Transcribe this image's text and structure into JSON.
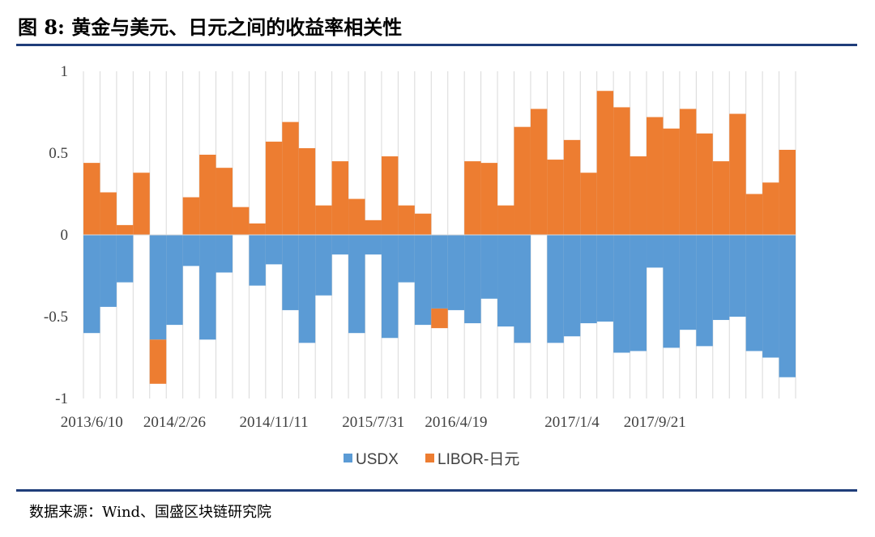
{
  "title": "图 8:  黄金与美元、日元之间的收益率相关性",
  "source": "数据来源：Wind、国盛区块链研究院",
  "chart_data": {
    "type": "bar",
    "stacked": true,
    "title": "图 8:  黄金与美元、日元之间的收益率相关性",
    "xlabel": "",
    "ylabel": "",
    "ylim": [
      -1,
      1
    ],
    "y_ticks": [
      "1",
      "0.5",
      "0",
      "-0.5",
      "-1"
    ],
    "y_tick_values": [
      1,
      0.5,
      0,
      -0.5,
      -1
    ],
    "x_tick_labels": [
      "2013/6/10",
      "2014/2/26",
      "2014/11/11",
      "2015/7/31",
      "2016/4/19",
      "2017/1/4",
      "2017/9/21"
    ],
    "x_tick_indices": [
      0,
      5,
      11,
      17,
      22,
      29,
      34
    ],
    "grid": "vertical",
    "legend_position": "bottom",
    "series": [
      {
        "name": "USDX",
        "color": "#5b9bd5",
        "values": [
          -0.6,
          -0.44,
          -0.29,
          0,
          -0.64,
          -0.55,
          -0.19,
          -0.64,
          -0.23,
          0,
          -0.31,
          -0.18,
          -0.46,
          -0.66,
          -0.37,
          -0.12,
          -0.6,
          -0.12,
          -0.63,
          -0.29,
          -0.55,
          -0.45,
          -0.46,
          -0.54,
          -0.39,
          -0.56,
          -0.66,
          0,
          -0.66,
          -0.62,
          -0.54,
          -0.53,
          -0.72,
          -0.71,
          -0.2,
          -0.69,
          -0.58,
          -0.68,
          -0.52,
          -0.5,
          -0.71,
          -0.75,
          -0.87
        ]
      },
      {
        "name": "LIBOR-日元",
        "color": "#ed7d31",
        "values": [
          0.44,
          0.26,
          0.06,
          0.38,
          -0.27,
          0,
          0.23,
          0.49,
          0.41,
          0.17,
          0.07,
          0.57,
          0.69,
          0.53,
          0.18,
          0.45,
          0.22,
          0.09,
          0.48,
          0.18,
          0.13,
          -0.12,
          0,
          0.45,
          0.44,
          0.18,
          0.66,
          0.77,
          0.46,
          0.58,
          0.38,
          0.88,
          0.78,
          0.48,
          0.72,
          0.65,
          0.77,
          0.62,
          0.45,
          0.74,
          0.25,
          0.32,
          0.52
        ]
      }
    ]
  }
}
